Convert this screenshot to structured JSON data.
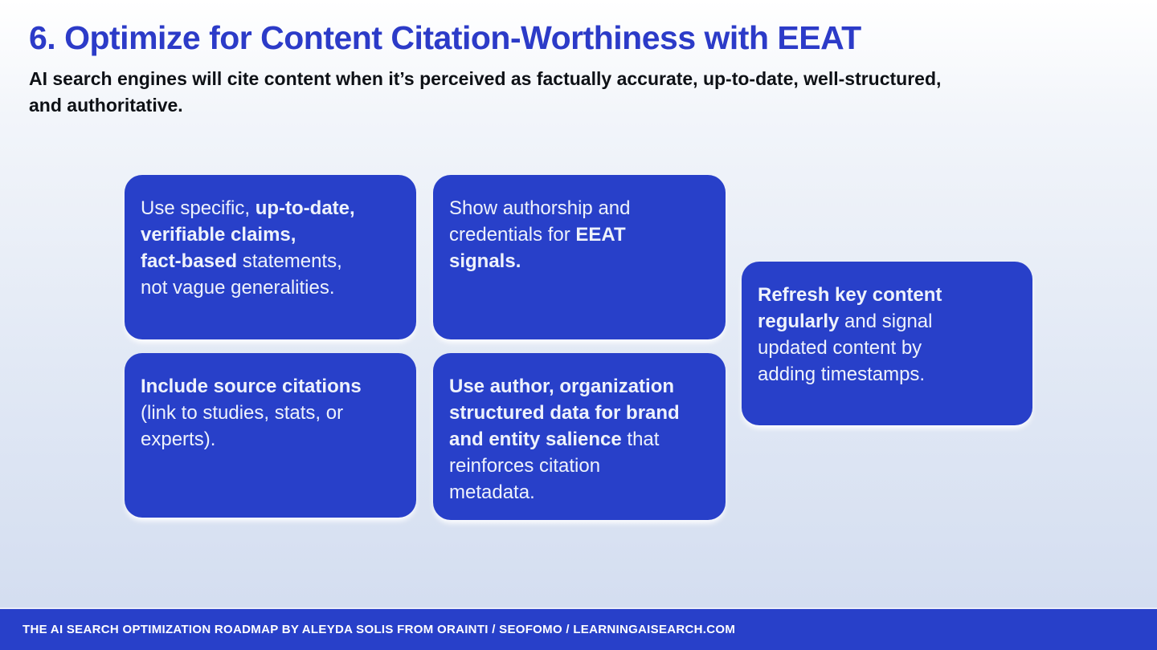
{
  "colors": {
    "accent_blue": "#2840c9",
    "title_blue": "#2c3bc8",
    "bg_top": "#ffffff",
    "bg_bottom": "#d3ddf0",
    "card_text": "#eef2fb"
  },
  "header": {
    "title": "6. Optimize for Content Citation-Worthiness with EEAT",
    "subtitle": "AI search engines will cite content when it’s perceived as factually accurate, up-to-date, well-structured,\nand authoritative."
  },
  "cards": [
    {
      "name": "specific-claims",
      "segments": [
        {
          "text": "Use specific, ",
          "bold": false
        },
        {
          "text": "up-to-date,\nverifiable claims,\nfact-based",
          "bold": true
        },
        {
          "text": " statements,\nnot vague generalities.",
          "bold": false
        }
      ]
    },
    {
      "name": "authorship-credentials",
      "segments": [
        {
          "text": "Show authorship and\ncredentials for ",
          "bold": false
        },
        {
          "text": "EEAT\nsignals.",
          "bold": true
        }
      ]
    },
    {
      "name": "refresh-content",
      "segments": [
        {
          "text": "Refresh key content\nregularly",
          "bold": true
        },
        {
          "text": " and signal\nupdated content by\nadding timestamps.",
          "bold": false
        }
      ]
    },
    {
      "name": "source-citations",
      "segments": [
        {
          "text": "Include source citations",
          "bold": true
        },
        {
          "text": "\n(link to studies, stats, or\nexperts).",
          "bold": false
        }
      ]
    },
    {
      "name": "structured-data",
      "segments": [
        {
          "text": "Use author, organization\nstructured data for brand\nand entity salience",
          "bold": true
        },
        {
          "text": " that\nreinforces citation\nmetadata.",
          "bold": false
        }
      ]
    }
  ],
  "footer": {
    "text": "THE AI SEARCH OPTIMIZATION ROADMAP BY ALEYDA SOLIS FROM ORAINTI / SEOFOMO / LEARNINGAISEARCH.COM"
  }
}
